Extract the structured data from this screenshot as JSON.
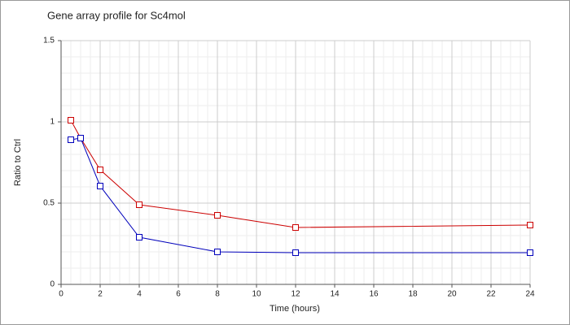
{
  "chart_data": {
    "type": "line",
    "title": "Gene array profile for Sc4mol",
    "x_label": "Time (hours)",
    "y_label": "Ratio to Ctrl",
    "x": [
      0.5,
      1,
      2,
      4,
      8,
      12,
      24
    ],
    "series": [
      {
        "color": "#cc0000",
        "values": [
          1.01,
          0.9,
          0.705,
          0.49,
          0.425,
          0.35,
          0.365
        ]
      },
      {
        "color": "#0000bb",
        "values": [
          0.89,
          0.9,
          0.605,
          0.29,
          0.2,
          0.195,
          0.195
        ]
      }
    ],
    "xlim": [
      0,
      24
    ],
    "xticks": [
      0,
      2,
      4,
      6,
      8,
      10,
      12,
      14,
      16,
      18,
      20,
      22,
      24
    ],
    "ylim": [
      0,
      1.5
    ],
    "yticks": [
      0,
      0.5,
      1,
      1.5
    ],
    "grid": true,
    "minor_grid": true
  }
}
